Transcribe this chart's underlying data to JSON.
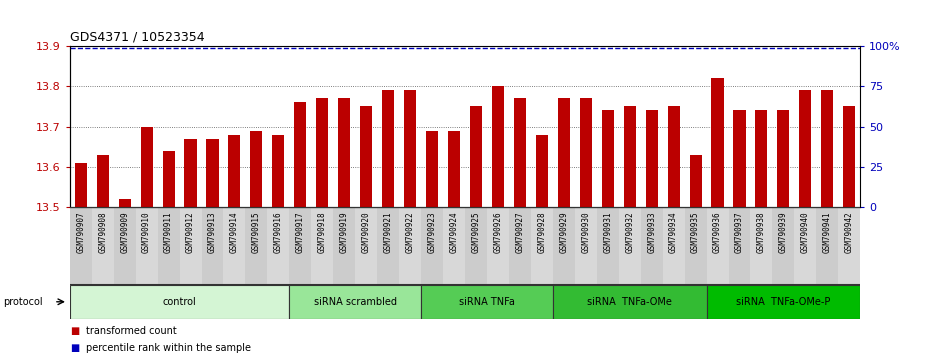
{
  "title": "GDS4371 / 10523354",
  "samples": [
    "GSM790907",
    "GSM790908",
    "GSM790909",
    "GSM790910",
    "GSM790911",
    "GSM790912",
    "GSM790913",
    "GSM790914",
    "GSM790915",
    "GSM790916",
    "GSM790917",
    "GSM790918",
    "GSM790919",
    "GSM790920",
    "GSM790921",
    "GSM790922",
    "GSM790923",
    "GSM790924",
    "GSM790925",
    "GSM790926",
    "GSM790927",
    "GSM790928",
    "GSM790929",
    "GSM790930",
    "GSM790931",
    "GSM790932",
    "GSM790933",
    "GSM790934",
    "GSM790935",
    "GSM790936",
    "GSM790937",
    "GSM790938",
    "GSM790939",
    "GSM790940",
    "GSM790941",
    "GSM790942"
  ],
  "values": [
    13.61,
    13.63,
    13.52,
    13.7,
    13.64,
    13.67,
    13.67,
    13.68,
    13.69,
    13.68,
    13.76,
    13.77,
    13.77,
    13.75,
    13.79,
    13.79,
    13.69,
    13.69,
    13.75,
    13.8,
    13.77,
    13.68,
    13.77,
    13.77,
    13.74,
    13.75,
    13.74,
    13.75,
    13.63,
    13.82,
    13.74,
    13.74,
    13.74,
    13.79,
    13.79,
    13.75
  ],
  "percentile_value": 13.895,
  "bar_color": "#bb0000",
  "percentile_color": "#0000bb",
  "ylim_min": 13.5,
  "ylim_max": 13.9,
  "yticks_left": [
    13.5,
    13.6,
    13.7,
    13.8,
    13.9
  ],
  "right_yticks": [
    0,
    25,
    50,
    75,
    100
  ],
  "right_ytick_labels": [
    "0",
    "25",
    "50",
    "75",
    "100%"
  ],
  "groups": [
    {
      "label": "control",
      "start": 0,
      "end": 10,
      "color": "#d4f5d4"
    },
    {
      "label": "siRNA scrambled",
      "start": 10,
      "end": 16,
      "color": "#99e699"
    },
    {
      "label": "siRNA TNFa",
      "start": 16,
      "end": 22,
      "color": "#55cc55"
    },
    {
      "label": "siRNA  TNFa-OMe",
      "start": 22,
      "end": 29,
      "color": "#33bb33"
    },
    {
      "label": "siRNA  TNFa-OMe-P",
      "start": 29,
      "end": 36,
      "color": "#00bb00"
    }
  ],
  "protocol_label": "protocol",
  "legend_items": [
    {
      "label": "transformed count",
      "color": "#bb0000"
    },
    {
      "label": "percentile rank within the sample",
      "color": "#0000bb"
    }
  ],
  "grid_color": "#555555",
  "bg_color": "#ffffff",
  "xtick_bg": "#d8d8d8"
}
